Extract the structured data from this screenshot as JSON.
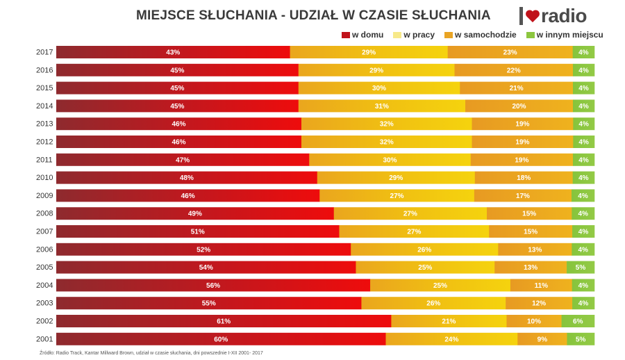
{
  "title": "MIEJSCE SŁUCHANIA - UDZIAŁ W CZASIE SŁUCHANIA",
  "logo_text": "radio",
  "source": "Źródło: Radio Track, Kantar Millward Brown, udział w czasie słuchania, dni powszednie I-XII 2001- 2017",
  "colors": {
    "w_domu": "#c0121a",
    "w_pracy": "#f2c811",
    "w_samochodzie": "#e9a424",
    "w_innym_miejscu": "#8cc63f",
    "title": "#3a3a3a"
  },
  "chart_data": {
    "type": "bar",
    "orientation": "horizontal",
    "stacked": "100%",
    "categories": [
      "2017",
      "2016",
      "2015",
      "2014",
      "2013",
      "2012",
      "2011",
      "2010",
      "2009",
      "2008",
      "2007",
      "2006",
      "2005",
      "2004",
      "2003",
      "2002",
      "2001"
    ],
    "series": [
      {
        "name": "w domu",
        "values": [
          43,
          45,
          45,
          45,
          46,
          46,
          47,
          48,
          46,
          49,
          51,
          52,
          54,
          56,
          55,
          61,
          60
        ]
      },
      {
        "name": "w pracy",
        "values": [
          29,
          29,
          30,
          31,
          32,
          32,
          30,
          29,
          27,
          27,
          27,
          26,
          25,
          25,
          26,
          21,
          24
        ]
      },
      {
        "name": "w samochodzie",
        "values": [
          23,
          22,
          21,
          20,
          19,
          19,
          19,
          18,
          17,
          15,
          15,
          13,
          13,
          11,
          12,
          10,
          9
        ]
      },
      {
        "name": "w innym miejscu",
        "values": [
          4,
          4,
          4,
          4,
          4,
          4,
          4,
          4,
          4,
          4,
          4,
          4,
          5,
          4,
          4,
          6,
          5
        ]
      }
    ],
    "value_suffix": "%",
    "legend_position": "top-right",
    "grid": false
  }
}
